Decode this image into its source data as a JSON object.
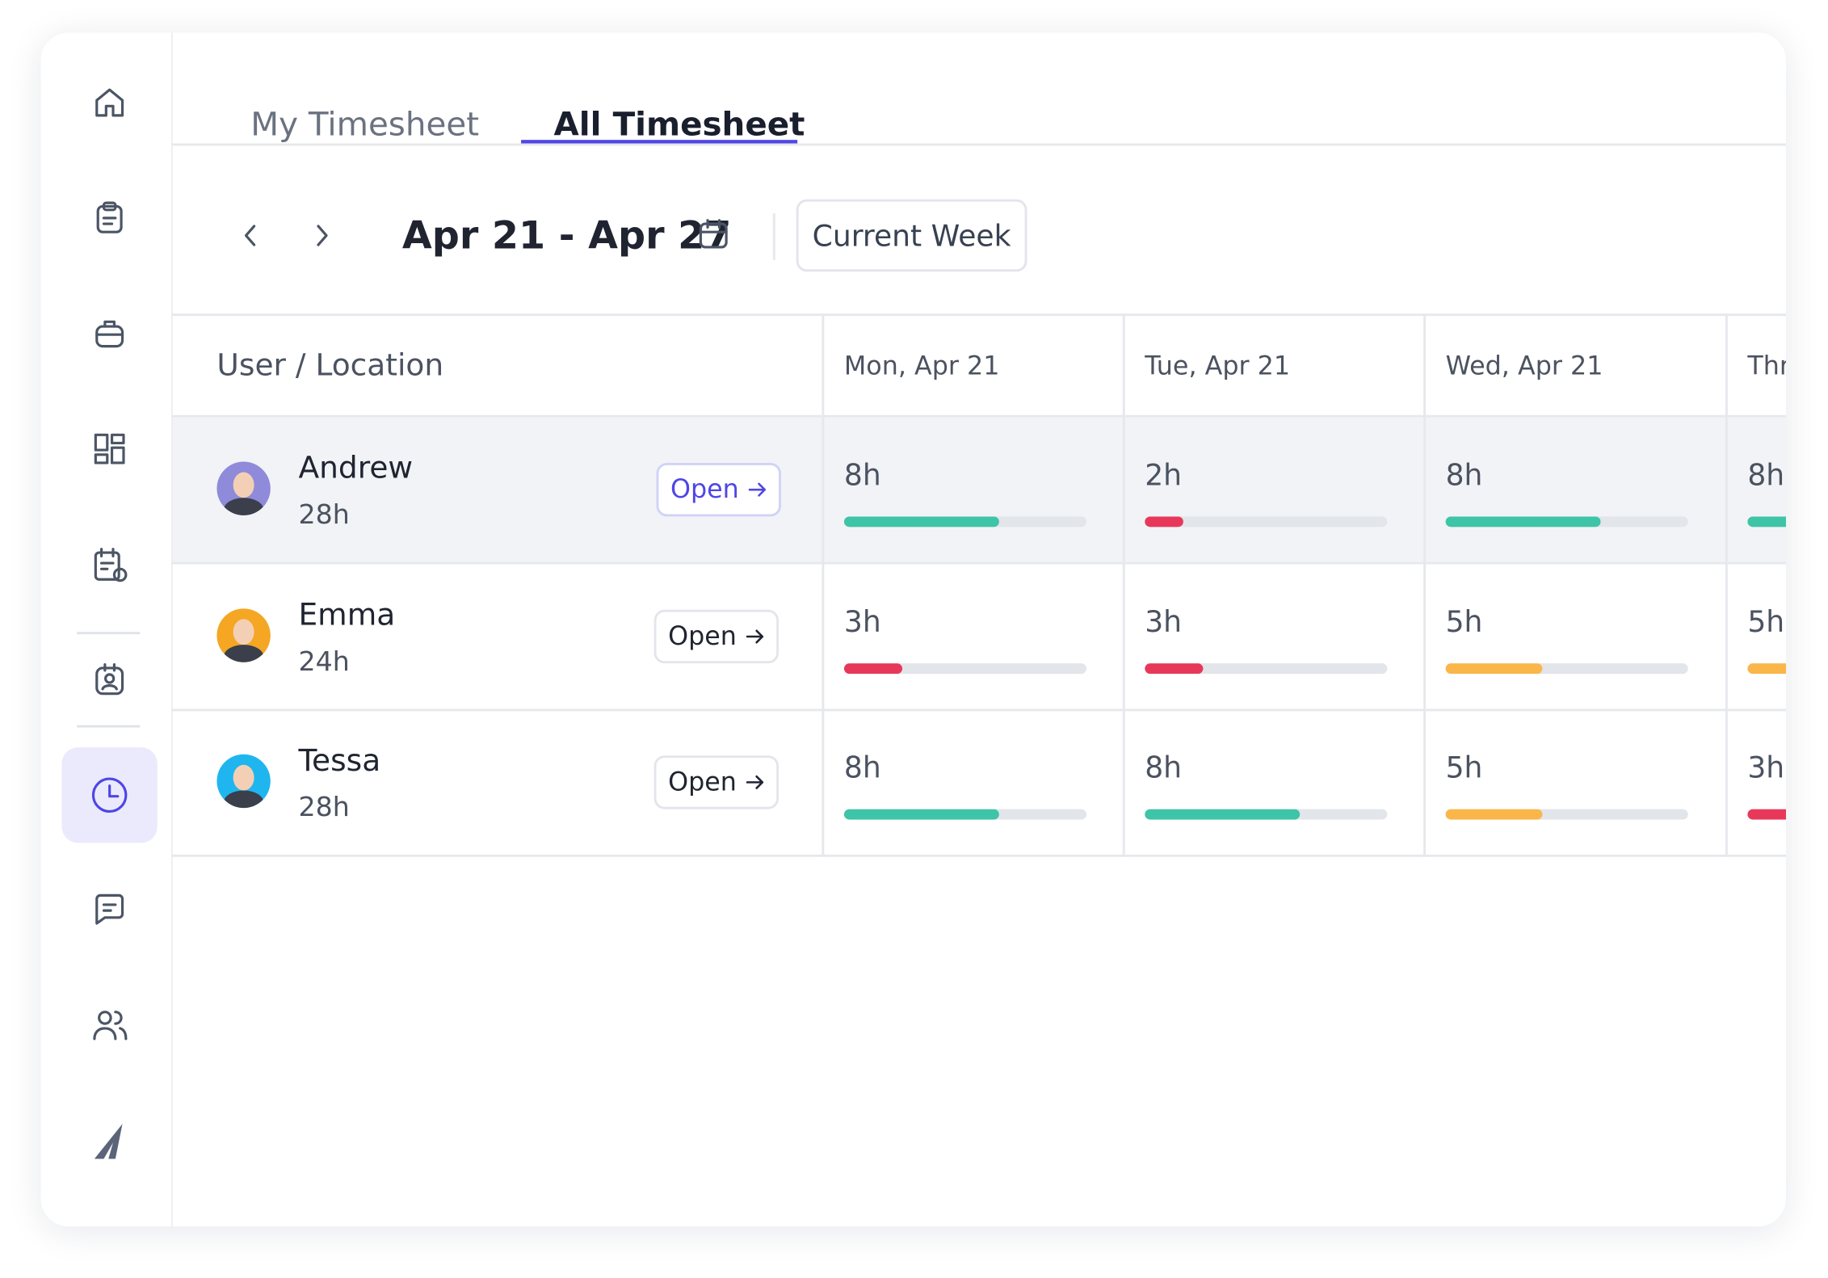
{
  "tabs": [
    "My Timesheet",
    "All Timesheet"
  ],
  "date_range": "Apr 21 - Apr 27",
  "current_week_button": "Current Week",
  "table": {
    "columns": [
      "User / Location",
      "Mon, Apr 21",
      "Tue, Apr 21",
      "Wed, Apr 21",
      "Thr"
    ],
    "rows": [
      {
        "name": "Andrew",
        "total": "28h",
        "action": "Open",
        "days": [
          {
            "hours": 8,
            "label": "8h",
            "color": "#3ec4a6"
          },
          {
            "hours": 2,
            "label": "2h",
            "color": "#e8385a"
          },
          {
            "hours": 8,
            "label": "8h",
            "color": "#3ec4a6"
          },
          {
            "hours": 8,
            "label": "8h",
            "color": "#3ec4a6"
          }
        ]
      },
      {
        "name": "Emma",
        "total": "24h",
        "action": "Open",
        "days": [
          {
            "hours": 3,
            "label": "3h",
            "color": "#e8385a"
          },
          {
            "hours": 3,
            "label": "3h",
            "color": "#e8385a"
          },
          {
            "hours": 5,
            "label": "5h",
            "color": "#fbb64a"
          },
          {
            "hours": 5,
            "label": "5h",
            "color": "#fbb64a"
          }
        ]
      },
      {
        "name": "Tessa",
        "total": "28h",
        "action": "Open",
        "days": [
          {
            "hours": 8,
            "label": "8h",
            "color": "#3ec4a6"
          },
          {
            "hours": 8,
            "label": "8h",
            "color": "#3ec4a6"
          },
          {
            "hours": 5,
            "label": "5h",
            "color": "#fbb64a"
          },
          {
            "hours": 3,
            "label": "3h",
            "color": "#e8385a"
          }
        ]
      }
    ]
  }
}
